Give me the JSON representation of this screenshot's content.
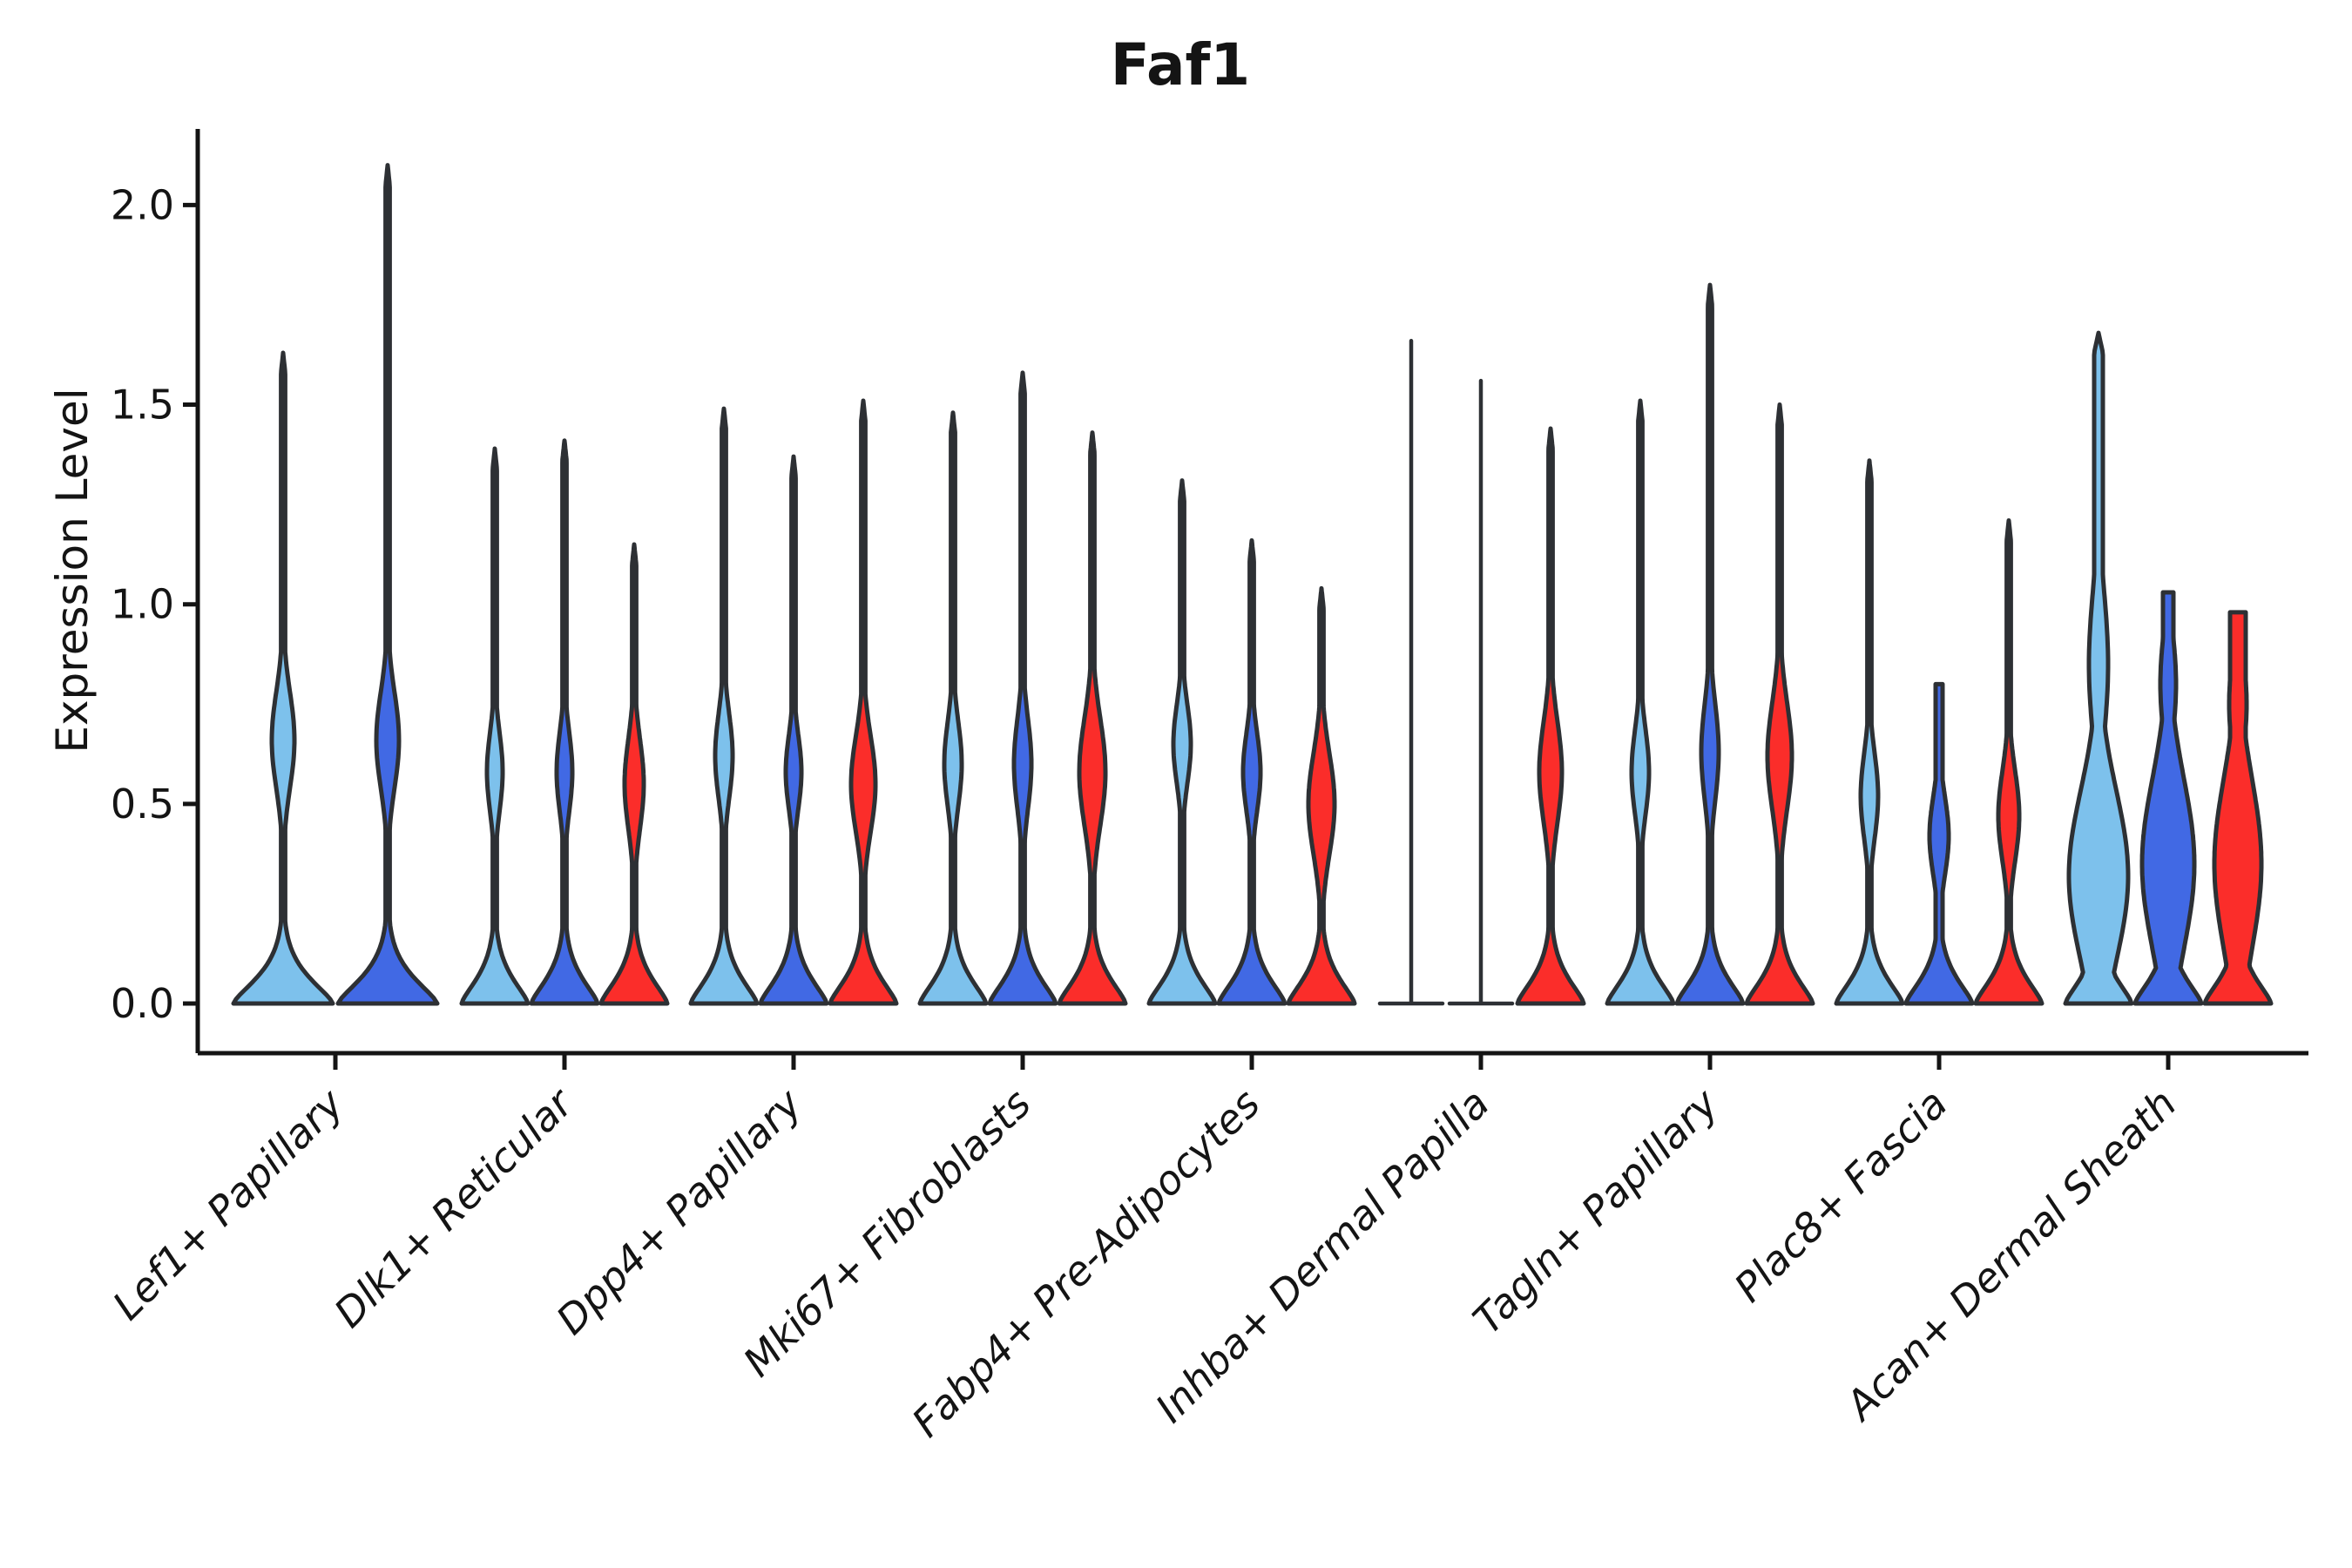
{
  "figure": {
    "title": "Faf1",
    "ylabel": "Expression Level"
  },
  "chart_data": {
    "type": "violin",
    "title": "Faf1",
    "xlabel": "",
    "ylabel": "Expression Level",
    "yticks": [
      "0.0",
      "0.5",
      "1.0",
      "1.5",
      "2.0"
    ],
    "ytick_values": [
      0.0,
      0.5,
      1.0,
      1.5,
      2.0
    ],
    "ylim": [
      0,
      2.25
    ],
    "grid": "off",
    "legend_position": "none",
    "series_palette": {
      "skyblue": "#7dc1ec",
      "royalblue": "#4169e4",
      "red": "#fb2d2a"
    },
    "outline_color": "#2d3034",
    "axis_color": "#141414",
    "categories": [
      "Lef1+ Papillary",
      "Dlk1+ Reticular",
      "Dpp4+ Papillary",
      "Mki67+ Fibroblasts",
      "Fabp4+ Pre-Adipocytes",
      "Inhba+ Dermal Papilla",
      "Tagln+ Papillary",
      "Plac8+ Fascia",
      "Acan+ Dermal Sheath"
    ],
    "groups": [
      {
        "category": "Lef1+ Papillary",
        "violins": [
          {
            "series": "skyblue",
            "max": 1.63,
            "type": "normal",
            "spindles": [
              {
                "c": 0.66,
                "s": 0.17,
                "w": 13
              }
            ]
          },
          {
            "series": "royalblue",
            "max": 2.1,
            "type": "normal",
            "spindles": [
              {
                "c": 0.66,
                "s": 0.17,
                "w": 13
              }
            ]
          }
        ]
      },
      {
        "category": "Dlk1+ Reticular",
        "violins": [
          {
            "series": "skyblue",
            "max": 1.39,
            "type": "normal",
            "spindles": [
              {
                "c": 0.58,
                "s": 0.14,
                "w": 9
              }
            ]
          },
          {
            "series": "royalblue",
            "max": 1.41,
            "type": "normal",
            "spindles": [
              {
                "c": 0.58,
                "s": 0.14,
                "w": 9
              }
            ]
          },
          {
            "series": "red",
            "max": 1.15,
            "type": "normal",
            "spindles": [
              {
                "c": 0.55,
                "s": 0.16,
                "w": 11
              }
            ]
          }
        ]
      },
      {
        "category": "Dpp4+ Papillary",
        "violins": [
          {
            "series": "skyblue",
            "max": 1.49,
            "type": "normal",
            "spindles": [
              {
                "c": 0.62,
                "s": 0.15,
                "w": 10
              }
            ]
          },
          {
            "series": "royalblue",
            "max": 1.37,
            "type": "normal",
            "spindles": [
              {
                "c": 0.58,
                "s": 0.13,
                "w": 9
              }
            ]
          },
          {
            "series": "red",
            "max": 1.51,
            "type": "normal",
            "spindles": [
              {
                "c": 0.55,
                "s": 0.17,
                "w": 14
              }
            ]
          }
        ]
      },
      {
        "category": "Mki67+ Fibroblasts",
        "violins": [
          {
            "series": "skyblue",
            "max": 1.48,
            "type": "normal",
            "spindles": [
              {
                "c": 0.6,
                "s": 0.15,
                "w": 10
              }
            ]
          },
          {
            "series": "royalblue",
            "max": 1.58,
            "type": "normal",
            "spindles": [
              {
                "c": 0.6,
                "s": 0.16,
                "w": 10
              }
            ]
          },
          {
            "series": "red",
            "max": 1.43,
            "type": "normal",
            "spindles": [
              {
                "c": 0.58,
                "s": 0.19,
                "w": 15
              }
            ]
          }
        ]
      },
      {
        "category": "Fabp4+ Pre-Adipocytes",
        "violins": [
          {
            "series": "skyblue",
            "max": 1.31,
            "type": "normal",
            "spindles": [
              {
                "c": 0.65,
                "s": 0.14,
                "w": 10
              }
            ]
          },
          {
            "series": "royalblue",
            "max": 1.16,
            "type": "normal",
            "spindles": [
              {
                "c": 0.58,
                "s": 0.14,
                "w": 10
              }
            ]
          },
          {
            "series": "red",
            "max": 1.04,
            "type": "normal",
            "spindles": [
              {
                "c": 0.5,
                "s": 0.18,
                "w": 15
              }
            ]
          }
        ]
      },
      {
        "category": "Inhba+ Dermal Papilla",
        "violins": [
          {
            "series": "skyblue",
            "max": 1.66,
            "type": "hairline",
            "spindles": []
          },
          {
            "series": "royalblue",
            "max": 1.56,
            "type": "hairline",
            "spindles": []
          },
          {
            "series": "red",
            "max": 1.44,
            "type": "normal",
            "spindles": [
              {
                "c": 0.58,
                "s": 0.18,
                "w": 13
              }
            ]
          }
        ]
      },
      {
        "category": "Tagln+ Papillary",
        "violins": [
          {
            "series": "skyblue",
            "max": 1.51,
            "type": "normal",
            "spindles": [
              {
                "c": 0.58,
                "s": 0.15,
                "w": 10
              }
            ]
          },
          {
            "series": "royalblue",
            "max": 1.8,
            "type": "normal",
            "spindles": [
              {
                "c": 0.63,
                "s": 0.17,
                "w": 10
              }
            ]
          },
          {
            "series": "red",
            "max": 1.5,
            "type": "normal",
            "spindles": [
              {
                "c": 0.62,
                "s": 0.19,
                "w": 14
              }
            ]
          }
        ]
      },
      {
        "category": "Plac8+ Fascia",
        "violins": [
          {
            "series": "skyblue",
            "max": 1.36,
            "type": "normal",
            "spindles": [
              {
                "c": 0.52,
                "s": 0.15,
                "w": 10
              }
            ]
          },
          {
            "series": "royalblue",
            "max": 0.8,
            "type": "normal",
            "cap": "flat",
            "stem": 4,
            "spindles": [
              {
                "c": 0.42,
                "s": 0.14,
                "w": 11
              }
            ]
          },
          {
            "series": "red",
            "max": 1.21,
            "type": "normal",
            "spindles": [
              {
                "c": 0.47,
                "s": 0.16,
                "w": 12
              }
            ]
          }
        ]
      },
      {
        "category": "Acan+ Dermal Sheath",
        "violins": [
          {
            "series": "skyblue",
            "max": 1.68,
            "type": "normal",
            "stem": 5,
            "spindles": [
              {
                "c": 0.32,
                "s": 0.3,
                "w": 34
              },
              {
                "c": 0.85,
                "s": 0.25,
                "w": 11
              }
            ]
          },
          {
            "series": "royalblue",
            "max": 1.03,
            "type": "normal",
            "cap": "flat",
            "stem": 6,
            "spindles": [
              {
                "c": 0.35,
                "s": 0.3,
                "w": 30
              },
              {
                "c": 0.8,
                "s": 0.18,
                "w": 9
              }
            ]
          },
          {
            "series": "red",
            "max": 0.98,
            "type": "normal",
            "cap": "flat",
            "stem": 9,
            "spindles": [
              {
                "c": 0.35,
                "s": 0.3,
                "w": 27
              },
              {
                "c": 0.75,
                "s": 0.18,
                "w": 10
              }
            ]
          }
        ]
      }
    ]
  }
}
